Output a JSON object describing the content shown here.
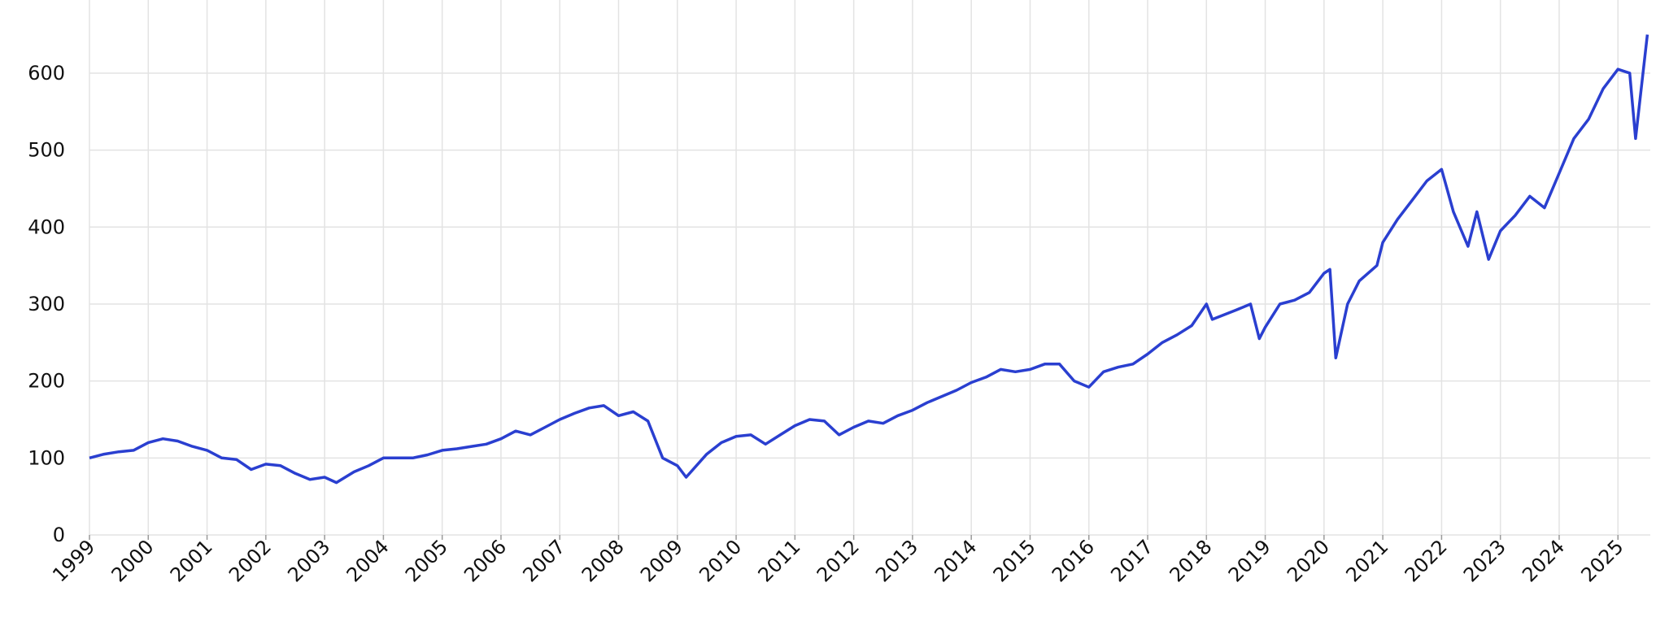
{
  "chart_data": {
    "type": "line",
    "x": [
      1999.0,
      1999.25,
      1999.5,
      1999.75,
      2000.0,
      2000.25,
      2000.5,
      2000.75,
      2001.0,
      2001.25,
      2001.5,
      2001.75,
      2002.0,
      2002.25,
      2002.5,
      2002.75,
      2003.0,
      2003.2,
      2003.5,
      2003.75,
      2004.0,
      2004.25,
      2004.5,
      2004.75,
      2005.0,
      2005.25,
      2005.5,
      2005.75,
      2006.0,
      2006.25,
      2006.5,
      2006.75,
      2007.0,
      2007.25,
      2007.5,
      2007.75,
      2008.0,
      2008.25,
      2008.5,
      2008.75,
      2009.0,
      2009.15,
      2009.5,
      2009.75,
      2010.0,
      2010.25,
      2010.5,
      2010.75,
      2011.0,
      2011.25,
      2011.5,
      2011.75,
      2012.0,
      2012.25,
      2012.5,
      2012.75,
      2013.0,
      2013.25,
      2013.5,
      2013.75,
      2014.0,
      2014.25,
      2014.5,
      2014.75,
      2015.0,
      2015.25,
      2015.5,
      2015.75,
      2016.0,
      2016.25,
      2016.5,
      2016.75,
      2017.0,
      2017.25,
      2017.5,
      2017.75,
      2018.0,
      2018.1,
      2018.5,
      2018.75,
      2018.9,
      2019.0,
      2019.25,
      2019.5,
      2019.75,
      2020.0,
      2020.1,
      2020.2,
      2020.4,
      2020.6,
      2020.9,
      2021.0,
      2021.25,
      2021.5,
      2021.75,
      2022.0,
      2022.2,
      2022.45,
      2022.6,
      2022.8,
      2023.0,
      2023.25,
      2023.5,
      2023.75,
      2024.0,
      2024.25,
      2024.5,
      2024.75,
      2025.0,
      2025.2,
      2025.3,
      2025.5
    ],
    "series": [
      {
        "color": "#2a3fd0",
        "values": [
          100,
          105,
          108,
          110,
          120,
          125,
          122,
          115,
          110,
          100,
          98,
          85,
          92,
          90,
          80,
          72,
          75,
          68,
          82,
          90,
          100,
          100,
          100,
          104,
          110,
          112,
          115,
          118,
          125,
          135,
          130,
          140,
          150,
          158,
          165,
          168,
          155,
          160,
          148,
          100,
          90,
          75,
          105,
          120,
          128,
          130,
          118,
          130,
          142,
          150,
          148,
          130,
          140,
          148,
          145,
          155,
          162,
          172,
          180,
          188,
          198,
          205,
          215,
          212,
          215,
          222,
          222,
          200,
          192,
          212,
          218,
          222,
          235,
          250,
          260,
          272,
          300,
          280,
          292,
          300,
          255,
          270,
          300,
          305,
          315,
          340,
          345,
          230,
          300,
          330,
          350,
          380,
          410,
          435,
          460,
          475,
          420,
          375,
          420,
          358,
          395,
          415,
          440,
          425,
          470,
          515,
          540,
          580,
          605,
          600,
          515,
          650
        ]
      }
    ],
    "xlim": [
      1999,
      2025.55
    ],
    "xticks": [
      1999,
      2000,
      2001,
      2002,
      2003,
      2004,
      2005,
      2006,
      2007,
      2008,
      2009,
      2010,
      2011,
      2012,
      2013,
      2014,
      2015,
      2016,
      2017,
      2018,
      2019,
      2020,
      2021,
      2022,
      2023,
      2024,
      2025
    ],
    "ylim": [
      0,
      695
    ],
    "yticks": [
      0,
      100,
      200,
      300,
      400,
      500,
      600
    ],
    "grid": true
  }
}
